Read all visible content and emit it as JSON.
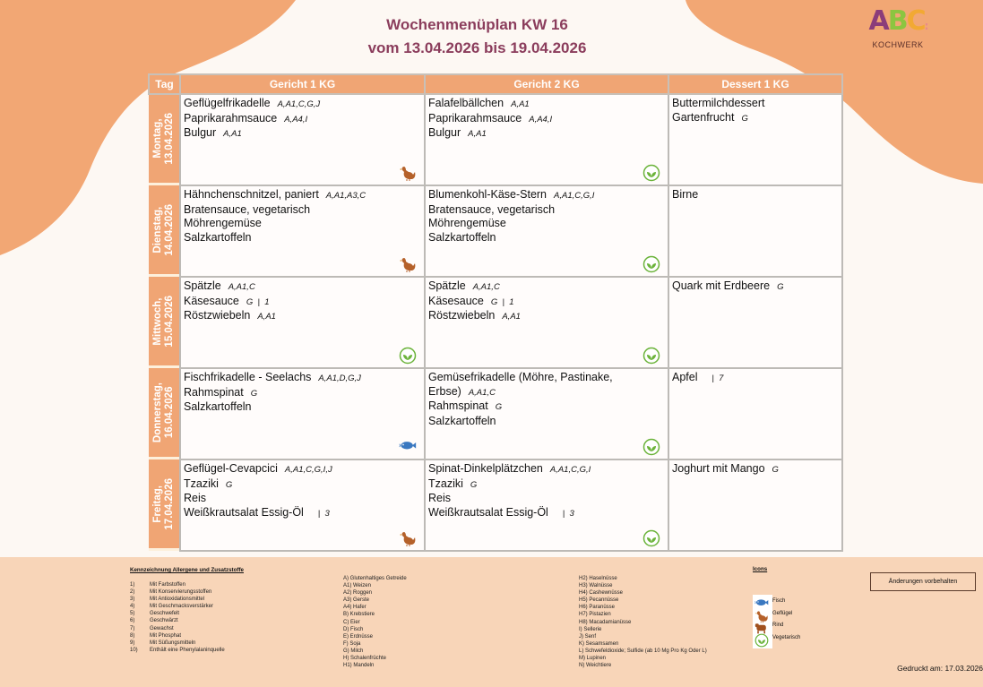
{
  "title": "Wochenmenüplan KW 16",
  "subtitle": "vom 13.04.2026 bis 19.04.2026",
  "logo": {
    "text": "ABC",
    "sub": "KOCHWERK",
    "colors": [
      "#8b3d7a",
      "#8cc540",
      "#f2a933"
    ]
  },
  "colors": {
    "accent": "#f0a574",
    "title": "#8b3d5c",
    "footer_bg": "#f8d5b8"
  },
  "table": {
    "headers": [
      "Tag",
      "Gericht 1 KG",
      "Gericht 2 KG",
      "Dessert 1 KG"
    ],
    "days": [
      {
        "day": "Montag,",
        "date": "13.04.2026",
        "g1": {
          "icon": "chicken-icon",
          "items": [
            {
              "name": "Geflügelfrikadelle",
              "codes": "A,A1,C,G,J"
            },
            {
              "name": "Paprikarahmsauce",
              "codes": "A,A4,I"
            },
            {
              "name": "Bulgur",
              "codes": "A,A1"
            }
          ]
        },
        "g2": {
          "icon": "vegetarian-icon",
          "items": [
            {
              "name": "Falafelbällchen",
              "codes": "A,A1"
            },
            {
              "name": "Paprikarahmsauce",
              "codes": "A,A4,I"
            },
            {
              "name": "Bulgur",
              "codes": "A,A1"
            }
          ]
        },
        "dessert": {
          "items": [
            {
              "name": "Buttermilchdessert",
              "codes": ""
            },
            {
              "name": "Gartenfrucht",
              "codes": "G"
            }
          ]
        }
      },
      {
        "day": "Dienstag,",
        "date": "14.04.2026",
        "g1": {
          "icon": "chicken-icon",
          "items": [
            {
              "name": "Hähnchenschnitzel, paniert",
              "codes": "A,A1,A3,C"
            },
            {
              "name": "Bratensauce, vegetarisch",
              "codes": ""
            },
            {
              "name": "Möhrengemüse",
              "codes": ""
            },
            {
              "name": "Salzkartoffeln",
              "codes": ""
            }
          ]
        },
        "g2": {
          "icon": "vegetarian-icon",
          "items": [
            {
              "name": "Blumenkohl-Käse-Stern",
              "codes": "A,A1,C,G,I"
            },
            {
              "name": "Bratensauce, vegetarisch",
              "codes": ""
            },
            {
              "name": "Möhrengemüse",
              "codes": ""
            },
            {
              "name": "Salzkartoffeln",
              "codes": ""
            }
          ]
        },
        "dessert": {
          "items": [
            {
              "name": "Birne",
              "codes": ""
            }
          ]
        }
      },
      {
        "day": "Mittwoch,",
        "date": "15.04.2026",
        "g1": {
          "icon": "vegetarian-icon",
          "items": [
            {
              "name": "Spätzle",
              "codes": "A,A1,C"
            },
            {
              "name": "Käsesauce",
              "codes": "G  |  1"
            },
            {
              "name": "Röstzwiebeln",
              "codes": "A,A1"
            }
          ]
        },
        "g2": {
          "icon": "vegetarian-icon",
          "items": [
            {
              "name": "Spätzle",
              "codes": "A,A1,C"
            },
            {
              "name": "Käsesauce",
              "codes": "G  |  1"
            },
            {
              "name": "Röstzwiebeln",
              "codes": "A,A1"
            }
          ]
        },
        "dessert": {
          "items": [
            {
              "name": "Quark mit Erdbeere",
              "codes": "G"
            }
          ]
        }
      },
      {
        "day": "Donnerstag,",
        "date": "16.04.2026",
        "g1": {
          "icon": "fish-icon",
          "items": [
            {
              "name": "Fischfrikadelle - Seelachs",
              "codes": "A,A1,D,G,J"
            },
            {
              "name": "Rahmspinat",
              "codes": "G"
            },
            {
              "name": "Salzkartoffeln",
              "codes": ""
            }
          ]
        },
        "g2": {
          "icon": "vegetarian-icon",
          "items": [
            {
              "name": "Gemüsefrikadelle (Möhre, Pastinake, Erbse)",
              "codes": "A,A1,C"
            },
            {
              "name": "Rahmspinat",
              "codes": "G"
            },
            {
              "name": "Salzkartoffeln",
              "codes": ""
            }
          ]
        },
        "dessert": {
          "items": [
            {
              "name": "Apfel",
              "codes": "   |  7"
            }
          ]
        }
      },
      {
        "day": "Freitag,",
        "date": "17.04.2026",
        "g1": {
          "icon": "chicken-icon",
          "items": [
            {
              "name": "Geflügel-Cevapcici",
              "codes": "A,A1,C,G,I,J"
            },
            {
              "name": "Tzaziki",
              "codes": "G"
            },
            {
              "name": "Reis",
              "codes": ""
            },
            {
              "name": "Weißkrautsalat Essig-Öl",
              "codes": "   |  3"
            }
          ]
        },
        "g2": {
          "icon": "vegetarian-icon",
          "items": [
            {
              "name": "Spinat-Dinkelplätzchen",
              "codes": "A,A1,C,G,I"
            },
            {
              "name": "Tzaziki",
              "codes": "G"
            },
            {
              "name": "Reis",
              "codes": ""
            },
            {
              "name": "Weißkrautsalat Essig-Öl",
              "codes": "   |  3"
            }
          ]
        },
        "dessert": {
          "items": [
            {
              "name": "Joghurt mit Mango",
              "codes": "G"
            }
          ]
        }
      }
    ]
  },
  "footer": {
    "heading": "Kennzeichnung Allergene und Zusatzstoffe",
    "additives": [
      [
        "1)",
        "Mit Farbstoffen"
      ],
      [
        "2)",
        "Mit Konservierungsstoffen"
      ],
      [
        "3)",
        "Mit Antioxidationsmittel"
      ],
      [
        "4)",
        "Mit Geschmacksverstärker"
      ],
      [
        "5)",
        "Geschwefelt"
      ],
      [
        "6)",
        "Geschwärzt"
      ],
      [
        "7)",
        "Gewachst"
      ],
      [
        "8)",
        "Mit Phosphat"
      ],
      [
        "9)",
        "Mit Süßungsmitteln"
      ],
      [
        "10)",
        "Enthält eine Phenylalaninquelle"
      ]
    ],
    "allergens1": [
      "A) Glutenhaltiges Getreide",
      "A1) Weizen",
      "A2) Roggen",
      "A3) Gerste",
      "A4) Hafer",
      "B) Krebstiere",
      "C) Eier",
      "D) Fisch",
      "E) Erdnüsse",
      "F) Soja",
      "G) Milch",
      "H) Schalenfrüchte",
      "H1) Mandeln"
    ],
    "allergens2": [
      "H2) Haselnüsse",
      "H3) Walnüsse",
      "H4) Cashewnüsse",
      "H5) Pecannüsse",
      "H6) Paranüsse",
      "H7) Pistazien",
      "H8) Macadamianüsse",
      "I) Sellerie",
      "J) Senf",
      "K) Sesamsamen",
      "L) Schwefeldioxide; Sulfide (ab 10 Mg Pro Kg Oder L)",
      "M) Lupinen",
      "N) Weichtiere"
    ],
    "icons_heading": "Icons",
    "icons": [
      {
        "icon": "fish-icon",
        "label": "Fisch"
      },
      {
        "icon": "chicken-icon",
        "label": "Geflügel"
      },
      {
        "icon": "beef-icon",
        "label": "Rind"
      },
      {
        "icon": "vegetarian-icon",
        "label": "Vegetarisch"
      }
    ],
    "notice": "Änderungen vorbehalten",
    "printed": "Gedruckt am: 17.03.2026"
  }
}
